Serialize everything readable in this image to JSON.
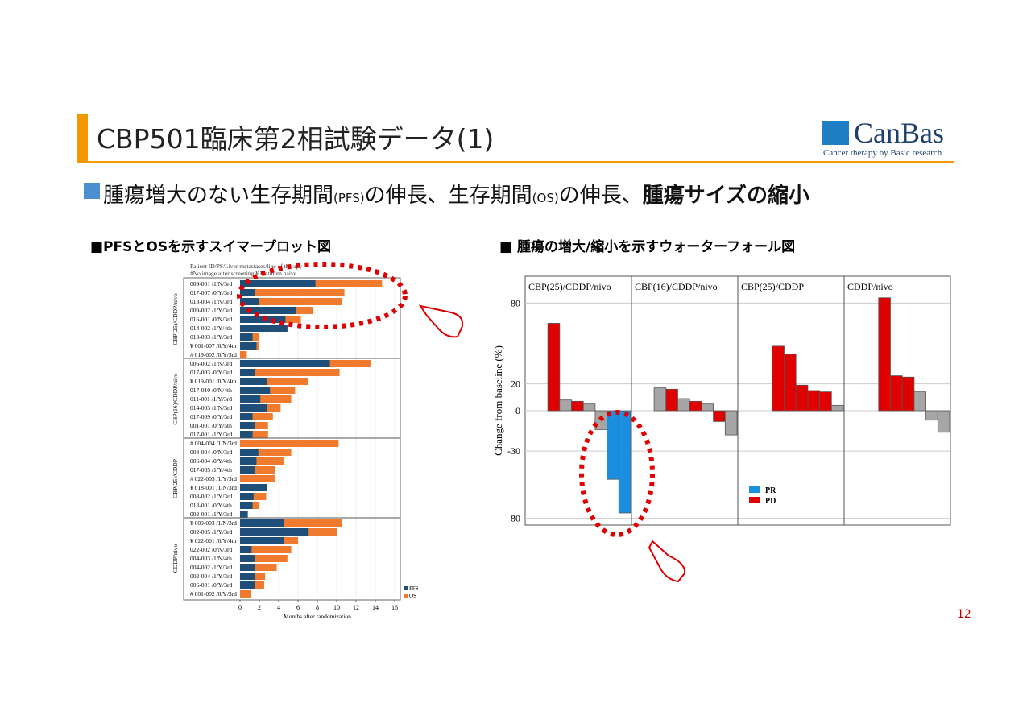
{
  "header": {
    "title": "CBP501臨床第2相試験データ(1)",
    "logo": "CanBas",
    "logo_tagline": "Cancer therapy by Basic research"
  },
  "subtitle": {
    "parts": [
      "腫瘍増大のない生存期間",
      "(PFS)",
      "の伸長、生存期間",
      "(OS)",
      "の伸長、",
      "腫瘍サイズの縮小"
    ]
  },
  "sections": [
    "■PFSとOSを示すスイマープロット図",
    "■ 腫瘍の増大/縮小を示すウォーターフォール図"
  ],
  "page_number": "12",
  "chart_data": [
    {
      "type": "swimmer",
      "header_lines": [
        "Patient ID/PS/Liver metastases/line of therapy",
        "#No image after screening  ¥ Platinum naive"
      ],
      "x_label": "Months after randomization",
      "xlim": [
        0,
        16
      ],
      "xticks": [
        0,
        2,
        4,
        6,
        8,
        10,
        12,
        14,
        16
      ],
      "grid": true,
      "legend": [
        {
          "name": "PFS",
          "color": "#1f4e79"
        },
        {
          "name": "OS",
          "color": "#f07b2e"
        }
      ],
      "groups": [
        {
          "name": "CBP(25)/CDDP/nivo",
          "categories": [
            "009-001 /1/N/3rd",
            "017-007 /0/Y/3rd",
            "013-004 /1/N/3rd",
            "009-002 /1/Y/3rd",
            "016-001 /0/N/3rd",
            "014-002 /1/Y/4th",
            "013-003 /1/Y/3rd",
            "¥ 001-007 /0/Y/4th",
            "# 019-002 /0/Y/3rd"
          ],
          "pfs": [
            7.8,
            1.5,
            2.0,
            5.8,
            4.7,
            4.9,
            1.3,
            1.7,
            null
          ],
          "os": [
            14.7,
            10.8,
            10.5,
            7.5,
            6.3,
            5.0,
            2.0,
            2.0,
            0.7
          ]
        },
        {
          "name": "CBP(16)/CDDP/nivo",
          "categories": [
            "006-002 /1/N/3rd",
            "017-003 /0/Y/3rd",
            "¥ 019-001 /0/Y/4th",
            "017-010 /0/N/4th",
            "011-001 /1/Y/3rd",
            "014-003 /1/N/3rd",
            "017-009 /0/Y/3rd",
            "001-001 /0/Y/5th",
            "017-001 /1/Y/3rd"
          ],
          "pfs": [
            9.3,
            1.5,
            2.8,
            3.1,
            2.1,
            2.8,
            1.3,
            1.5,
            1.3
          ],
          "os": [
            13.5,
            10.3,
            7.0,
            5.7,
            5.3,
            4.2,
            3.4,
            2.9,
            2.9
          ]
        },
        {
          "name": "CBP(25)/CDDP",
          "categories": [
            "# 004-004 /1/N/3rd",
            "008-004 /0/N/3rd",
            "006-004 /0/Y/4th",
            "017-005 /1/Y/4th",
            "# 022-003 /1/Y/3rd",
            "¥ 018-001 /1/N/3rd",
            "008-002 /1/Y/3rd",
            "013-001 /0/Y/4th",
            "002-001 /1/Y/3rd"
          ],
          "pfs": [
            null,
            1.9,
            1.7,
            1.5,
            null,
            2.8,
            1.4,
            1.3,
            0.8
          ],
          "os": [
            10.2,
            5.3,
            4.5,
            3.6,
            3.6,
            2.8,
            2.7,
            2.0,
            0.8
          ]
        },
        {
          "name": "CDDP/nivo",
          "categories": [
            "¥ 009-003 /1/N/3rd",
            "002-005 /1/Y/3rd",
            "¥ 022-001 /0/Y/4th",
            "022-002 /0/N/3rd",
            "004-003 /1/N/4th",
            "004-002 /1/Y/3rd",
            "002-004 /1/Y/3rd",
            "006-001 /0/Y/3rd",
            "# 001-002 /0/Y/3rd"
          ],
          "pfs": [
            4.5,
            7.1,
            4.5,
            1.2,
            1.5,
            1.5,
            1.5,
            1.5,
            null
          ],
          "os": [
            10.5,
            10.0,
            6.0,
            5.3,
            4.9,
            3.8,
            2.6,
            2.5,
            1.1
          ]
        }
      ]
    },
    {
      "type": "waterfall",
      "y_label": "Change from baseline (%)",
      "ylim": [
        -85,
        100
      ],
      "yticks": [
        80,
        20,
        0,
        -30,
        -80
      ],
      "grid": true,
      "legend": [
        {
          "name": "PR",
          "color": "#1a8fe0"
        },
        {
          "name": "PD",
          "color": "#e00000"
        }
      ],
      "panels": [
        {
          "name": "CBP(25)/CDDP/nivo",
          "values": [
            65,
            8,
            7,
            5,
            -14,
            -51,
            -76
          ],
          "colors": [
            "#e00000",
            "#a6a6a6",
            "#e00000",
            "#a6a6a6",
            "#a6a6a6",
            "#1a8fe0",
            "#1a8fe0"
          ]
        },
        {
          "name": "CBP(16)/CDDP/nivo",
          "values": [
            17,
            16,
            9,
            7,
            5,
            -8,
            -18
          ],
          "colors": [
            "#a6a6a6",
            "#e00000",
            "#a6a6a6",
            "#e00000",
            "#a6a6a6",
            "#e00000",
            "#a6a6a6"
          ]
        },
        {
          "name": "CBP(25)/CDDP",
          "values": [
            48,
            42,
            19,
            15,
            14,
            4
          ],
          "colors": [
            "#e00000",
            "#e00000",
            "#e00000",
            "#e00000",
            "#e00000",
            "#a6a6a6"
          ]
        },
        {
          "name": "CDDP/nivo",
          "values": [
            84,
            26,
            25,
            14,
            -7,
            -16
          ],
          "colors": [
            "#e00000",
            "#e00000",
            "#e00000",
            "#a6a6a6",
            "#a6a6a6",
            "#a6a6a6"
          ]
        }
      ]
    }
  ]
}
